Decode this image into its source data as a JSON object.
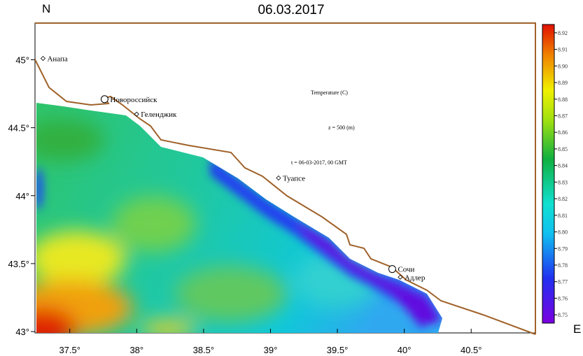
{
  "map": {
    "title": "06.03.2017",
    "north_label": "N",
    "east_label": "E",
    "annotations": [
      "Temperature (C)",
      "z = 500 (m)",
      "t = 06-03-2017, 00 GMT"
    ],
    "xlim": [
      37.24,
      40.98
    ],
    "ylim": [
      42.99,
      45.27
    ],
    "xticks": [
      {
        "value": 37.5,
        "label": "37.5°"
      },
      {
        "value": 38,
        "label": "38°"
      },
      {
        "value": 38.5,
        "label": "38.5°"
      },
      {
        "value": 39,
        "label": "39°"
      },
      {
        "value": 39.5,
        "label": "39.5°"
      },
      {
        "value": 40,
        "label": "40°"
      },
      {
        "value": 40.5,
        "label": "40.5°"
      }
    ],
    "yticks": [
      {
        "value": 43,
        "label": "43°"
      },
      {
        "value": 43.5,
        "label": "43.5°"
      },
      {
        "value": 44,
        "label": "44°"
      },
      {
        "value": 44.5,
        "label": "44.5°"
      },
      {
        "value": 45,
        "label": "45°"
      }
    ],
    "cities": [
      {
        "name": "Анапа",
        "lon": 37.3,
        "lat": 45.01,
        "marker": "diamond"
      },
      {
        "name": "Новороссийск",
        "lon": 37.76,
        "lat": 44.71,
        "marker": "circle"
      },
      {
        "name": "Геленджик",
        "lon": 38.0,
        "lat": 44.6,
        "marker": "diamond"
      },
      {
        "name": "Туапсе",
        "lon": 39.06,
        "lat": 44.13,
        "marker": "diamond"
      },
      {
        "name": "Сочи",
        "lon": 39.91,
        "lat": 43.46,
        "marker": "circle"
      },
      {
        "name": "Адлер",
        "lon": 39.97,
        "lat": 43.4,
        "marker": "diamond"
      }
    ],
    "colorbar": {
      "lim": [
        8.745,
        8.925
      ],
      "ticks": [
        8.75,
        8.76,
        8.77,
        8.78,
        8.79,
        {
          "value": 8.8,
          "label": "8.80"
        },
        8.81,
        8.82,
        8.83,
        8.84,
        8.85,
        8.86,
        8.87,
        8.88,
        8.89,
        {
          "value": 8.9,
          "label": "8.90"
        },
        8.91,
        8.92
      ]
    }
  }
}
